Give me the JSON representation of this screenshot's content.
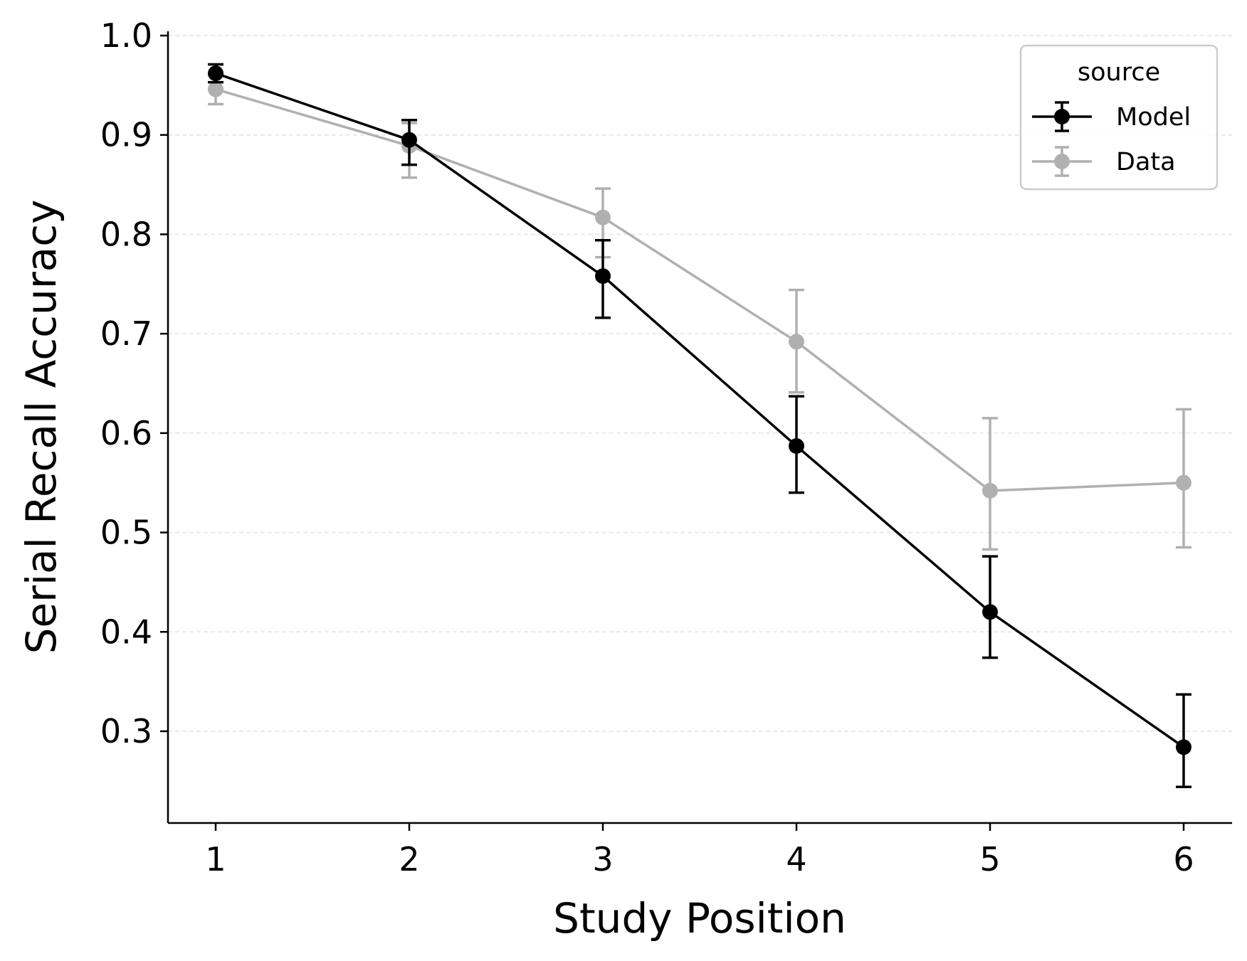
{
  "chart_data": {
    "type": "line",
    "title": "",
    "xlabel": "Study Position",
    "ylabel": "Serial Recall Accuracy",
    "x": [
      1,
      2,
      3,
      4,
      5,
      6
    ],
    "xticks": [
      "1",
      "2",
      "3",
      "4",
      "5",
      "6"
    ],
    "xlim": [
      0.75,
      6.25
    ],
    "yticks": [
      "0.3",
      "0.4",
      "0.5",
      "0.6",
      "0.7",
      "0.8",
      "0.9",
      "1.0"
    ],
    "ytick_values": [
      0.3,
      0.4,
      0.5,
      0.6,
      0.7,
      0.8,
      0.9,
      1.0
    ],
    "ylim": [
      0.21,
      1.005
    ],
    "grid": "horizontal dashed",
    "legend": {
      "title": "source",
      "position": "top-right",
      "entries": [
        "Model",
        "Data"
      ]
    },
    "series": [
      {
        "name": "Model",
        "color": "#000000",
        "values": [
          0.962,
          0.895,
          0.758,
          0.587,
          0.42,
          0.284
        ],
        "err_low": [
          0.953,
          0.87,
          0.716,
          0.54,
          0.374,
          0.244
        ],
        "err_high": [
          0.971,
          0.915,
          0.794,
          0.637,
          0.476,
          0.337
        ]
      },
      {
        "name": "Data",
        "color": "#b0b0b0",
        "values": [
          0.946,
          0.889,
          0.817,
          0.692,
          0.542,
          0.55
        ],
        "err_low": [
          0.931,
          0.857,
          0.777,
          0.641,
          0.483,
          0.485
        ],
        "err_high": [
          0.961,
          0.912,
          0.846,
          0.744,
          0.615,
          0.624
        ]
      }
    ]
  }
}
